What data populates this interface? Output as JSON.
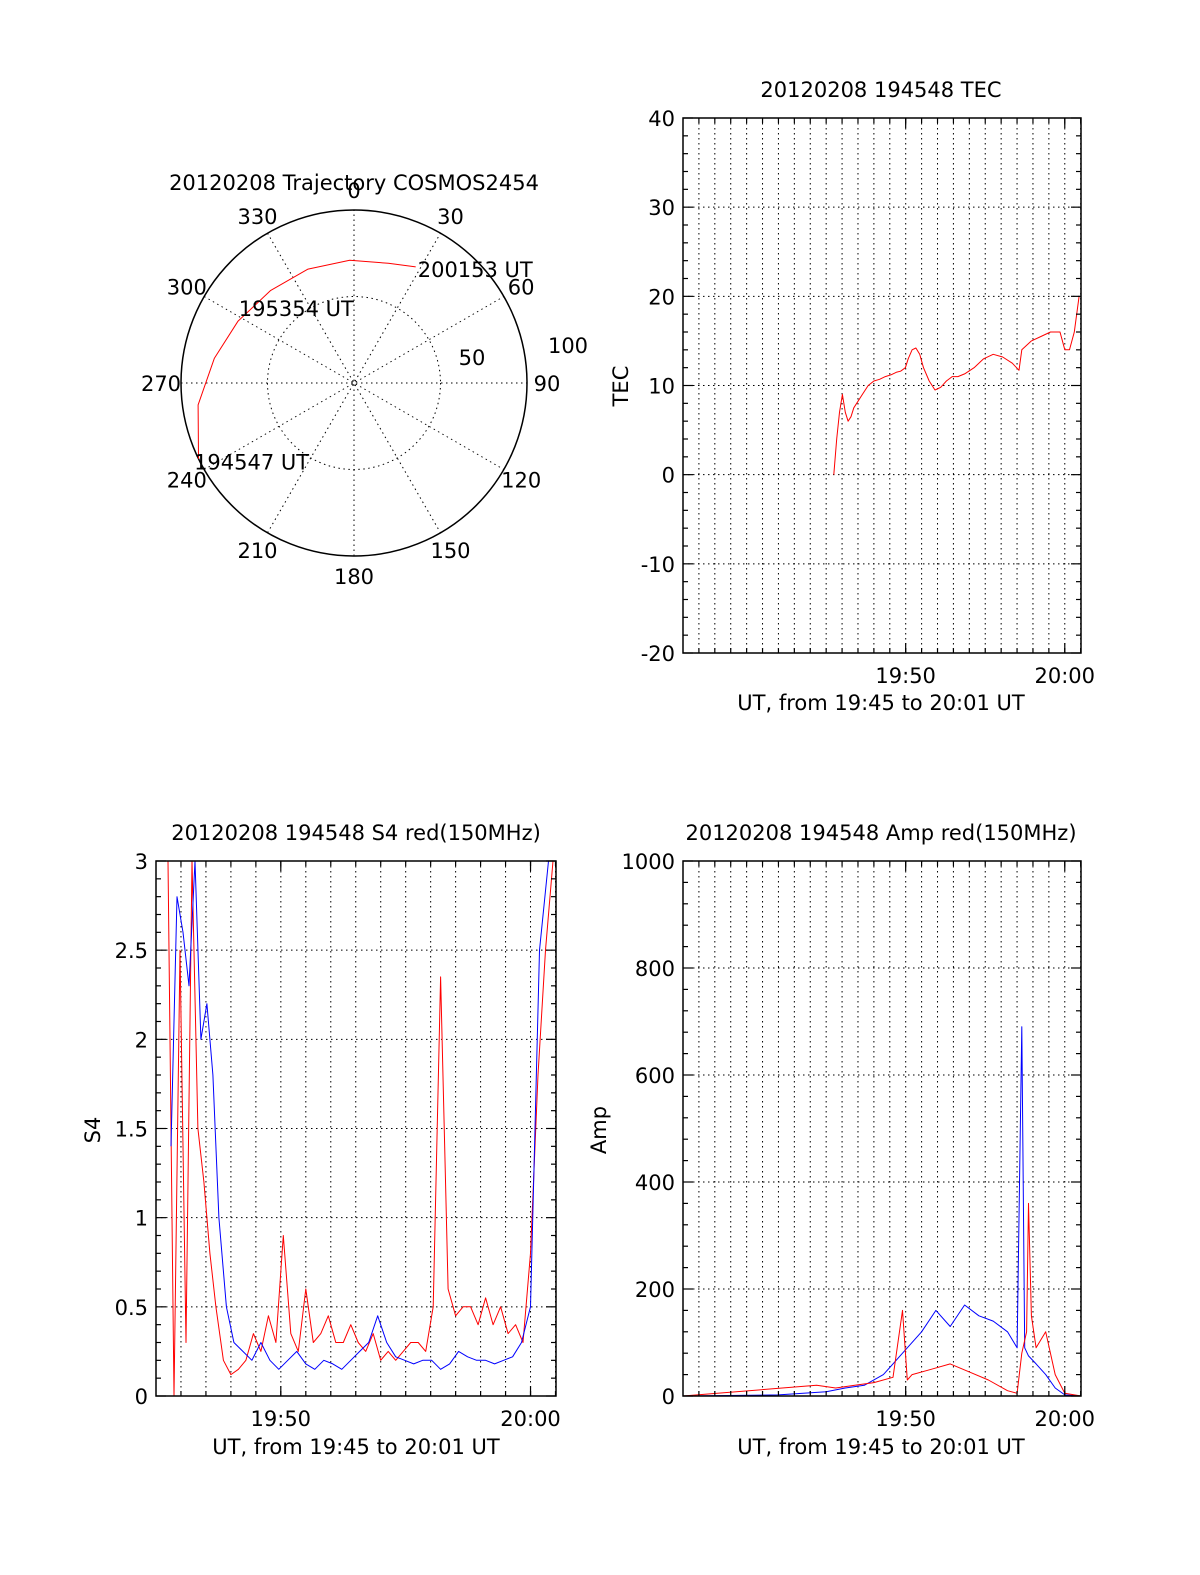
{
  "colors": {
    "red": "#ff0000",
    "blue": "#0000ff",
    "axis": "#000000"
  },
  "chart_data": [
    {
      "type": "polar",
      "title": "20120208 Trajectory COSMOS2454",
      "azimuth_labels": [
        "0",
        "30",
        "60",
        "90",
        "120",
        "150",
        "180",
        "210",
        "240",
        "270",
        "300",
        "330"
      ],
      "radial_labels": [
        "50",
        "100"
      ],
      "radial_range": [
        0,
        100
      ],
      "annotations": [
        {
          "text": "200153 UT",
          "az": 28,
          "r": 76
        },
        {
          "text": "195354 UT",
          "az": 318,
          "r": 52
        },
        {
          "text": "194547 UT",
          "az": 245,
          "r": 102
        }
      ],
      "trajectory": [
        {
          "az": 244,
          "r": 100
        },
        {
          "az": 262,
          "r": 91
        },
        {
          "az": 280,
          "r": 82
        },
        {
          "az": 298,
          "r": 76
        },
        {
          "az": 318,
          "r": 72
        },
        {
          "az": 338,
          "r": 71
        },
        {
          "az": 358,
          "r": 71
        },
        {
          "az": 16,
          "r": 72
        },
        {
          "az": 28,
          "r": 76
        }
      ]
    },
    {
      "type": "line",
      "title": "20120208 194548 TEC",
      "xlabel": "UT, from 19:45 to 20:01 UT",
      "ylabel": "TEC",
      "xlim": [
        19.6,
        20.017
      ],
      "ylim": [
        -20,
        40
      ],
      "yticks": [
        -20,
        -10,
        0,
        10,
        20,
        30,
        40
      ],
      "xticks": [
        {
          "v": 19.8333,
          "label": "19:50"
        },
        {
          "v": 20.0,
          "label": "20:00"
        }
      ],
      "grid": true,
      "series": [
        {
          "color": "#ff0000",
          "x": [
            19.758,
            19.761,
            19.764,
            19.767,
            19.77,
            19.773,
            19.776,
            19.779,
            19.782,
            19.788,
            19.794,
            19.8,
            19.806,
            19.812,
            19.818,
            19.824,
            19.828,
            19.833,
            19.836,
            19.84,
            19.844,
            19.848,
            19.852,
            19.858,
            19.864,
            19.87,
            19.876,
            19.882,
            19.888,
            19.895,
            19.905,
            19.915,
            19.925,
            19.935,
            19.945,
            19.952,
            19.955,
            19.965,
            19.975,
            19.985,
            19.995,
            20.0,
            20.005,
            20.01,
            20.015
          ],
          "y": [
            0,
            4,
            7,
            9,
            7,
            6,
            6.5,
            7.5,
            8,
            9,
            10,
            10.5,
            10.7,
            11,
            11.2,
            11.5,
            11.6,
            12,
            13,
            14,
            14.2,
            13.5,
            12,
            10.5,
            9.5,
            9.8,
            10.5,
            11,
            11,
            11.3,
            12,
            13,
            13.5,
            13.2,
            12.5,
            11.7,
            14,
            15,
            15.5,
            16,
            16,
            14,
            14,
            16,
            20
          ]
        }
      ]
    },
    {
      "type": "line",
      "title": "20120208 194548 S4 red(150MHz)",
      "xlabel": "UT, from 19:45 to 20:01 UT",
      "ylabel": "S4",
      "xlim": [
        19.75,
        20.017
      ],
      "ylim": [
        0,
        3
      ],
      "yticks": [
        0,
        0.5,
        1,
        1.5,
        2,
        2.5,
        3
      ],
      "ytick_labels": [
        "0",
        "0.5",
        "1",
        "1.5",
        "2",
        "2.5",
        "3"
      ],
      "xticks": [
        {
          "v": 19.8333,
          "label": "19:50"
        },
        {
          "v": 20.0,
          "label": "20:00"
        }
      ],
      "grid": true,
      "series": [
        {
          "color": "#ff0000",
          "x": [
            19.758,
            19.762,
            19.766,
            19.77,
            19.774,
            19.778,
            19.782,
            19.786,
            19.79,
            19.795,
            19.8,
            19.805,
            19.81,
            19.815,
            19.82,
            19.825,
            19.83,
            19.835,
            19.84,
            19.845,
            19.85,
            19.855,
            19.86,
            19.865,
            19.87,
            19.875,
            19.88,
            19.885,
            19.89,
            19.895,
            19.9,
            19.905,
            19.91,
            19.915,
            19.92,
            19.925,
            19.93,
            19.935,
            19.94,
            19.945,
            19.95,
            19.955,
            19.96,
            19.965,
            19.97,
            19.975,
            19.98,
            19.985,
            19.99,
            19.995,
            20.0,
            20.005,
            20.01,
            20.015
          ],
          "y": [
            3.0,
            0.0,
            2.5,
            0.3,
            3.0,
            1.5,
            1.2,
            0.8,
            0.5,
            0.2,
            0.12,
            0.15,
            0.2,
            0.35,
            0.25,
            0.45,
            0.3,
            0.9,
            0.35,
            0.25,
            0.6,
            0.3,
            0.35,
            0.45,
            0.3,
            0.3,
            0.4,
            0.3,
            0.25,
            0.35,
            0.2,
            0.25,
            0.2,
            0.25,
            0.3,
            0.3,
            0.25,
            0.5,
            2.35,
            0.6,
            0.45,
            0.5,
            0.5,
            0.4,
            0.55,
            0.4,
            0.5,
            0.35,
            0.4,
            0.3,
            0.8,
            1.8,
            2.5,
            3.0
          ]
        },
        {
          "color": "#0000ff",
          "x": [
            19.76,
            19.764,
            19.768,
            19.772,
            19.776,
            19.78,
            19.784,
            19.788,
            19.792,
            19.797,
            19.802,
            19.808,
            19.814,
            19.82,
            19.826,
            19.832,
            19.838,
            19.844,
            19.85,
            19.856,
            19.862,
            19.868,
            19.874,
            19.88,
            19.886,
            19.892,
            19.898,
            19.904,
            19.91,
            19.916,
            19.922,
            19.928,
            19.934,
            19.94,
            19.946,
            19.952,
            19.958,
            19.964,
            19.97,
            19.976,
            19.982,
            19.988,
            19.994,
            20.0,
            20.006,
            20.012,
            20.015
          ],
          "y": [
            1.4,
            2.8,
            2.6,
            2.3,
            3.0,
            2.0,
            2.2,
            1.8,
            1.0,
            0.5,
            0.3,
            0.25,
            0.2,
            0.3,
            0.2,
            0.15,
            0.2,
            0.25,
            0.18,
            0.15,
            0.2,
            0.18,
            0.15,
            0.2,
            0.25,
            0.3,
            0.45,
            0.3,
            0.22,
            0.2,
            0.18,
            0.2,
            0.2,
            0.15,
            0.18,
            0.25,
            0.22,
            0.2,
            0.2,
            0.18,
            0.2,
            0.22,
            0.3,
            0.5,
            2.5,
            3.0,
            3.0
          ]
        }
      ]
    },
    {
      "type": "line",
      "title": "20120208 194548 Amp red(150MHz)",
      "xlabel": "UT, from 19:45 to 20:01 UT",
      "ylabel": "Amp",
      "xlim": [
        19.6,
        20.017
      ],
      "ylim": [
        0,
        1000
      ],
      "yticks": [
        0,
        200,
        400,
        600,
        800,
        1000
      ],
      "xticks": [
        {
          "v": 19.8333,
          "label": "19:50"
        },
        {
          "v": 20.0,
          "label": "20:00"
        }
      ],
      "grid": true,
      "series": [
        {
          "color": "#0000ff",
          "x": [
            19.6,
            19.7,
            19.75,
            19.77,
            19.79,
            19.81,
            19.83,
            19.85,
            19.865,
            19.88,
            19.895,
            19.91,
            19.925,
            19.94,
            19.95,
            19.955,
            19.958,
            19.962,
            19.97,
            19.98,
            19.99,
            20.0,
            20.017
          ],
          "y": [
            0,
            2,
            8,
            15,
            20,
            40,
            80,
            120,
            160,
            130,
            170,
            150,
            140,
            120,
            90,
            690,
            90,
            75,
            60,
            40,
            15,
            2,
            0
          ]
        },
        {
          "color": "#ff0000",
          "x": [
            19.6,
            19.74,
            19.76,
            19.78,
            19.8,
            19.82,
            19.83,
            19.835,
            19.84,
            19.86,
            19.88,
            19.9,
            19.92,
            19.94,
            19.95,
            19.955,
            19.96,
            19.962,
            19.965,
            19.97,
            19.98,
            19.99,
            20.0,
            20.017
          ],
          "y": [
            0,
            20,
            15,
            20,
            25,
            35,
            160,
            30,
            40,
            50,
            60,
            45,
            30,
            10,
            5,
            80,
            120,
            360,
            150,
            90,
            120,
            40,
            5,
            0
          ]
        }
      ]
    }
  ]
}
